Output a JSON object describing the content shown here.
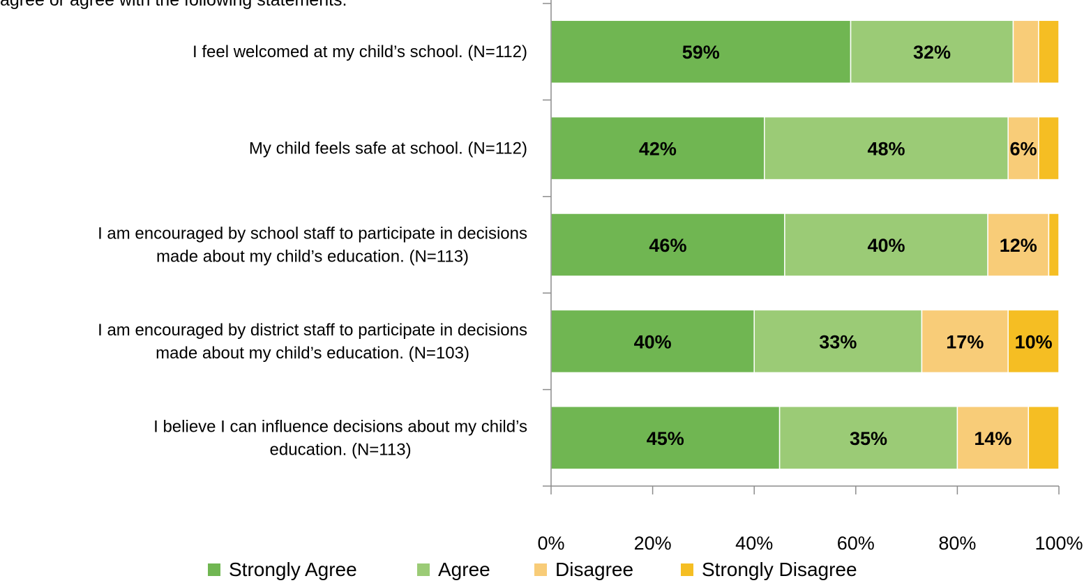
{
  "chart_data": {
    "type": "bar",
    "orientation": "horizontal",
    "stacked": true,
    "title": "agree or agree with the following statements.",
    "categories": [
      [
        "I feel welcomed at my child’s school. (N=112)"
      ],
      [
        "My child feels safe at school. (N=112)"
      ],
      [
        "I am encouraged by school staff to participate in decisions",
        "made about my child’s education. (N=113)"
      ],
      [
        "I am encouraged by district staff to participate in decisions",
        "made about my child’s education. (N=103)"
      ],
      [
        "I believe I can influence decisions about my child’s",
        "education. (N=113)"
      ]
    ],
    "series": [
      {
        "name": "Strongly Agree",
        "color": "#70B652",
        "values": [
          59,
          42,
          46,
          40,
          45
        ],
        "labels": [
          "59%",
          "42%",
          "46%",
          "40%",
          "45%"
        ]
      },
      {
        "name": "Agree",
        "color": "#9BCB76",
        "values": [
          32,
          48,
          40,
          33,
          35
        ],
        "labels": [
          "32%",
          "48%",
          "40%",
          "33%",
          "35%"
        ]
      },
      {
        "name": "Disagree",
        "color": "#F8CC78",
        "values": [
          5,
          6,
          12,
          17,
          14
        ],
        "labels": [
          "",
          "6%",
          "12%",
          "17%",
          "14%"
        ]
      },
      {
        "name": "Strongly Disagree",
        "color": "#F5BE23",
        "values": [
          4,
          4,
          2,
          10,
          6
        ],
        "labels": [
          "",
          "",
          "",
          "10%",
          ""
        ]
      }
    ],
    "xlim": [
      0,
      100
    ],
    "xticks": [
      "0%",
      "20%",
      "40%",
      "60%",
      "80%",
      "100%"
    ],
    "grid": false,
    "legend_position": "bottom"
  }
}
